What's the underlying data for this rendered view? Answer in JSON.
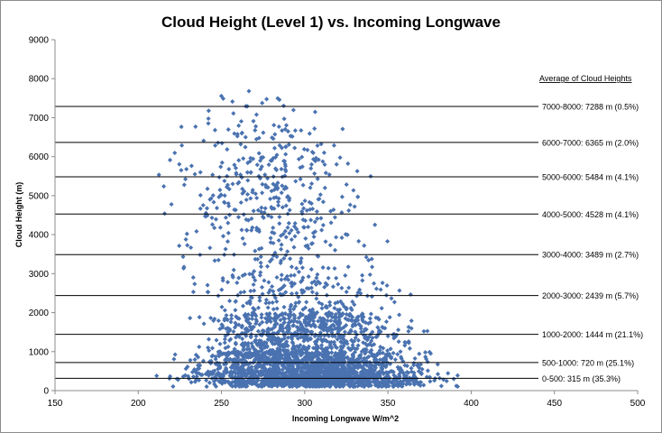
{
  "chart_data": {
    "type": "scatter",
    "title": "Cloud Height (Level 1) vs. Incoming Longwave",
    "xlabel": "Incoming Longwave W/m^2",
    "ylabel": "Cloud Height (m)",
    "xlim": [
      150,
      500
    ],
    "ylim": [
      0,
      9000
    ],
    "xticks": [
      150,
      200,
      250,
      300,
      350,
      400,
      450,
      500
    ],
    "yticks": [
      0,
      1000,
      2000,
      3000,
      4000,
      5000,
      6000,
      7000,
      8000,
      9000
    ],
    "grid": false,
    "marker_color": "#4a72b0",
    "reference_lines": [
      {
        "value": 7288,
        "label": "7000-8000: 7288 m (0.5%)"
      },
      {
        "value": 6365,
        "label": "6000-7000: 6365 m (2.0%)"
      },
      {
        "value": 5484,
        "label": "5000-6000: 5484 m (4.1%)"
      },
      {
        "value": 4528,
        "label": "4000-5000: 4528 m (4.1%)"
      },
      {
        "value": 3489,
        "label": "3000-4000: 3489 m (2.7%)"
      },
      {
        "value": 2439,
        "label": "2000-3000: 2439 m (5.7%)"
      },
      {
        "value": 1444,
        "label": "1000-2000: 1444 m (21.1%)"
      },
      {
        "value": 720,
        "label": "500-1000: 720 m (25.1%)"
      },
      {
        "value": 315,
        "label": "0-500: 315 m (35.3%)"
      }
    ],
    "annotation_header": "Average of Cloud Heights",
    "point_bands": [
      {
        "y_min": 7000,
        "y_max": 7700,
        "x_min": 212,
        "x_max": 325,
        "fraction": 0.005
      },
      {
        "y_min": 6000,
        "y_max": 7000,
        "x_min": 205,
        "x_max": 340,
        "fraction": 0.02
      },
      {
        "y_min": 5000,
        "y_max": 6000,
        "x_min": 200,
        "x_max": 355,
        "fraction": 0.041
      },
      {
        "y_min": 4000,
        "y_max": 5000,
        "x_min": 205,
        "x_max": 360,
        "fraction": 0.041
      },
      {
        "y_min": 3000,
        "y_max": 4000,
        "x_min": 205,
        "x_max": 368,
        "fraction": 0.027
      },
      {
        "y_min": 2000,
        "y_max": 3000,
        "x_min": 210,
        "x_max": 375,
        "fraction": 0.057
      },
      {
        "y_min": 1000,
        "y_max": 2000,
        "x_min": 212,
        "x_max": 385,
        "fraction": 0.211
      },
      {
        "y_min": 500,
        "y_max": 1000,
        "x_min": 210,
        "x_max": 392,
        "fraction": 0.251
      },
      {
        "y_min": 100,
        "y_max": 500,
        "x_min": 205,
        "x_max": 405,
        "fraction": 0.353
      }
    ]
  }
}
